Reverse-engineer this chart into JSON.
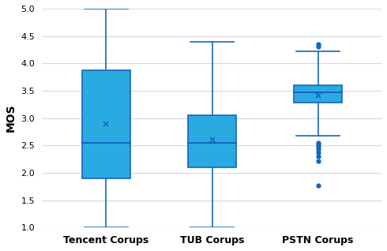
{
  "title": "",
  "ylabel": "MOS",
  "ylim": [
    1,
    5
  ],
  "yticks": [
    1,
    1.5,
    2,
    2.5,
    3,
    3.5,
    4,
    4.5,
    5
  ],
  "categories": [
    "Tencent Corups",
    "TUB Corups",
    "PSTN Corups"
  ],
  "box_color": "#29ABE2",
  "box_edge_color": "#1565C0",
  "whisker_color": "#1565C0",
  "median_color": "#1565C0",
  "mean_marker_color": "#1565C0",
  "flier_color": "#1565C0",
  "background_color": "#ffffff",
  "grid_color": "#d0d8e8",
  "boxes": [
    {
      "q1": 1.9,
      "median": 2.55,
      "q3": 3.87,
      "mean": 2.9,
      "whislo": 1.0,
      "whishi": 5.0,
      "fliers": []
    },
    {
      "q1": 2.1,
      "median": 2.55,
      "q3": 3.05,
      "mean": 2.6,
      "whislo": 1.0,
      "whishi": 4.4,
      "fliers": []
    },
    {
      "q1": 3.28,
      "median": 3.47,
      "q3": 3.6,
      "mean": 3.42,
      "whislo": 2.68,
      "whishi": 4.22,
      "fliers": [
        4.3,
        4.35,
        1.77,
        2.55,
        2.52,
        2.48,
        2.43,
        2.38,
        2.3,
        2.22
      ]
    }
  ],
  "figsize": [
    4.9,
    3.18
  ],
  "dpi": 100
}
